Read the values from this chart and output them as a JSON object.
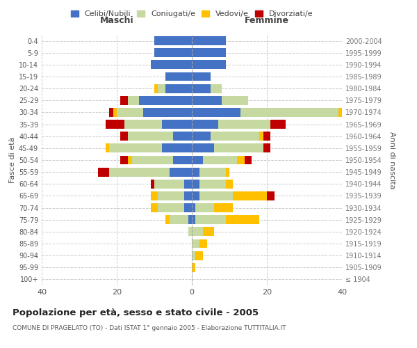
{
  "age_groups": [
    "100+",
    "95-99",
    "90-94",
    "85-89",
    "80-84",
    "75-79",
    "70-74",
    "65-69",
    "60-64",
    "55-59",
    "50-54",
    "45-49",
    "40-44",
    "35-39",
    "30-34",
    "25-29",
    "20-24",
    "15-19",
    "10-14",
    "5-9",
    "0-4"
  ],
  "birth_years": [
    "≤ 1904",
    "1905-1909",
    "1910-1914",
    "1915-1919",
    "1920-1924",
    "1925-1929",
    "1930-1934",
    "1935-1939",
    "1940-1944",
    "1945-1949",
    "1950-1954",
    "1955-1959",
    "1960-1964",
    "1965-1969",
    "1970-1974",
    "1975-1979",
    "1980-1984",
    "1985-1989",
    "1990-1994",
    "1995-1999",
    "2000-2004"
  ],
  "colors": {
    "celibe": "#4472c4",
    "coniugato": "#c5d9a0",
    "vedovo": "#ffc000",
    "divorziato": "#c00000"
  },
  "maschi": {
    "celibe": [
      0,
      0,
      0,
      0,
      0,
      1,
      2,
      2,
      2,
      6,
      5,
      8,
      5,
      8,
      13,
      14,
      7,
      7,
      11,
      10,
      10
    ],
    "coniugato": [
      0,
      0,
      0,
      0,
      1,
      5,
      7,
      7,
      8,
      16,
      11,
      14,
      12,
      10,
      7,
      3,
      2,
      0,
      0,
      0,
      0
    ],
    "vedovo": [
      0,
      0,
      0,
      0,
      0,
      1,
      2,
      2,
      0,
      0,
      1,
      1,
      0,
      0,
      1,
      0,
      1,
      0,
      0,
      0,
      0
    ],
    "divorziato": [
      0,
      0,
      0,
      0,
      0,
      0,
      0,
      0,
      1,
      3,
      2,
      0,
      2,
      5,
      1,
      2,
      0,
      0,
      0,
      0,
      0
    ]
  },
  "femmine": {
    "celibe": [
      0,
      0,
      0,
      0,
      0,
      1,
      1,
      2,
      2,
      2,
      3,
      6,
      5,
      7,
      13,
      8,
      5,
      5,
      9,
      9,
      9
    ],
    "coniugato": [
      0,
      0,
      1,
      2,
      3,
      8,
      5,
      9,
      7,
      7,
      9,
      13,
      13,
      14,
      26,
      7,
      3,
      0,
      0,
      0,
      0
    ],
    "vedovo": [
      0,
      1,
      2,
      2,
      3,
      9,
      5,
      9,
      2,
      1,
      2,
      0,
      1,
      0,
      1,
      0,
      0,
      0,
      0,
      0,
      0
    ],
    "divorziato": [
      0,
      0,
      0,
      0,
      0,
      0,
      0,
      2,
      0,
      0,
      2,
      2,
      2,
      4,
      0,
      0,
      0,
      0,
      0,
      0,
      0
    ]
  },
  "xlim": 40,
  "title": "Popolazione per età, sesso e stato civile - 2005",
  "subtitle": "COMUNE DI PRAGELATO (TO) - Dati ISTAT 1° gennaio 2005 - Elaborazione TUTTITALIA.IT",
  "ylabel_left": "Fasce di età",
  "ylabel_right": "Anni di nascita",
  "xlabel_left": "Maschi",
  "xlabel_right": "Femmine",
  "legend_labels": [
    "Celibi/Nubili",
    "Coniugati/e",
    "Vedovi/e",
    "Divorziati/e"
  ],
  "background_color": "#ffffff",
  "grid_color": "#cccccc"
}
